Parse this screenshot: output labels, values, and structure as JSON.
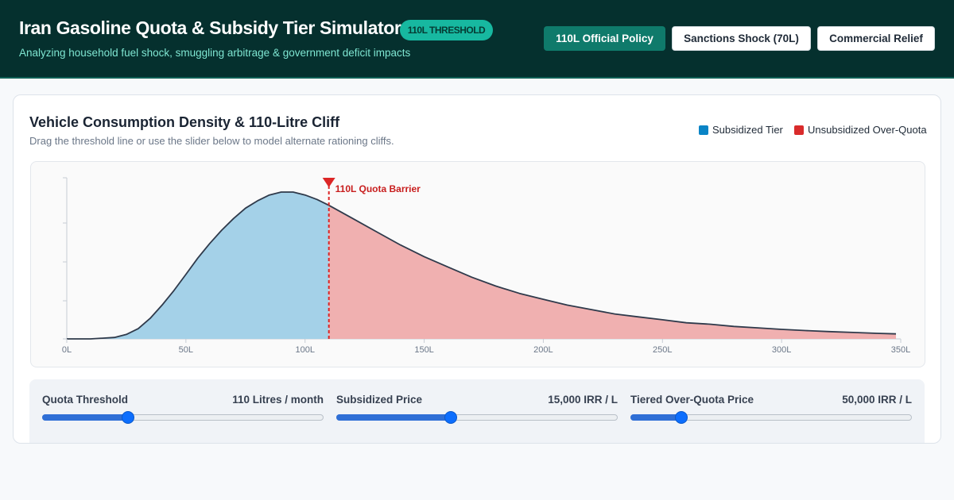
{
  "header": {
    "title": "Iran Gasoline Quota & Subsidy Tier Simulator",
    "badge": "110L THRESHOLD",
    "subtitle": "Analyzing household fuel shock, smuggling arbitrage & government deficit impacts",
    "presets": [
      {
        "label": "110L Official Policy",
        "active": true
      },
      {
        "label": "Sanctions Shock (70L)",
        "active": false
      },
      {
        "label": "Commercial Relief",
        "active": false
      }
    ]
  },
  "card": {
    "title": "Vehicle Consumption Density & 110-Litre Cliff",
    "subtitle": "Drag the threshold line or use the slider below to model alternate rationing cliffs.",
    "legend": [
      {
        "label": "Subsidized Tier",
        "color": "#0a84c6"
      },
      {
        "label": "Unsubsidized Over-Quota",
        "color": "#d92b2b"
      }
    ]
  },
  "chart_data": {
    "type": "area",
    "x_ticks": [
      "0L",
      "50L",
      "100L",
      "150L",
      "200L",
      "250L",
      "300L",
      "350L"
    ],
    "xlim": [
      0,
      350
    ],
    "threshold": 110,
    "threshold_label": "110L Quota Barrier",
    "curve": [
      [
        0,
        0.0
      ],
      [
        10,
        0.0
      ],
      [
        20,
        0.01
      ],
      [
        25,
        0.03
      ],
      [
        30,
        0.07
      ],
      [
        35,
        0.14
      ],
      [
        40,
        0.23
      ],
      [
        45,
        0.33
      ],
      [
        50,
        0.44
      ],
      [
        55,
        0.55
      ],
      [
        60,
        0.65
      ],
      [
        65,
        0.74
      ],
      [
        70,
        0.82
      ],
      [
        75,
        0.89
      ],
      [
        80,
        0.94
      ],
      [
        85,
        0.98
      ],
      [
        90,
        1.0
      ],
      [
        95,
        1.0
      ],
      [
        100,
        0.98
      ],
      [
        105,
        0.95
      ],
      [
        110,
        0.91
      ],
      [
        120,
        0.82
      ],
      [
        130,
        0.73
      ],
      [
        140,
        0.64
      ],
      [
        150,
        0.56
      ],
      [
        160,
        0.49
      ],
      [
        170,
        0.42
      ],
      [
        180,
        0.36
      ],
      [
        190,
        0.31
      ],
      [
        200,
        0.27
      ],
      [
        210,
        0.23
      ],
      [
        220,
        0.2
      ],
      [
        230,
        0.17
      ],
      [
        240,
        0.15
      ],
      [
        250,
        0.13
      ],
      [
        260,
        0.11
      ],
      [
        270,
        0.1
      ],
      [
        280,
        0.085
      ],
      [
        290,
        0.075
      ],
      [
        300,
        0.065
      ],
      [
        310,
        0.057
      ],
      [
        320,
        0.05
      ],
      [
        330,
        0.044
      ],
      [
        340,
        0.038
      ],
      [
        348,
        0.034
      ]
    ],
    "colors": {
      "subsidized_fill": "#a4d1e8",
      "over_quota_fill": "#f0b0b0",
      "line": "#2f3a4b",
      "threshold": "#dc2626"
    }
  },
  "controls": [
    {
      "label": "Quota Threshold",
      "value": "110 Litres / month",
      "fraction": 0.305
    },
    {
      "label": "Subsidized Price",
      "value": "15,000 IRR / L",
      "fraction": 0.405
    },
    {
      "label": "Tiered Over-Quota Price",
      "value": "50,000 IRR / L",
      "fraction": 0.18
    }
  ]
}
